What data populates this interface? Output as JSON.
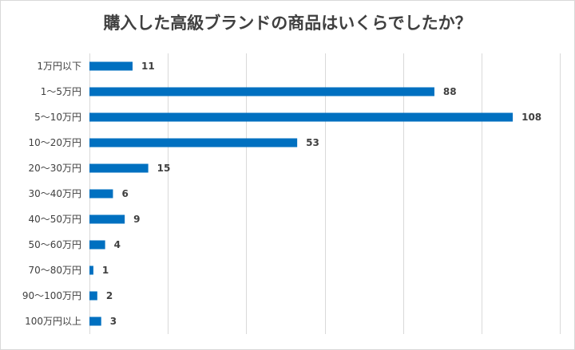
{
  "chart_data": {
    "type": "bar",
    "orientation": "horizontal",
    "title": "購入した高級ブランドの商品はいくらでしたか？",
    "categories": [
      "1万円以下",
      "1～5万円",
      "5～10万円",
      "10～20万円",
      "20～30万円",
      "30～40万円",
      "40～50万円",
      "50～60万円",
      "70～80万円",
      "90～100万円",
      "100万円以上"
    ],
    "values": [
      11,
      88,
      108,
      53,
      15,
      6,
      9,
      4,
      1,
      2,
      3
    ],
    "xlim": [
      0,
      120
    ],
    "grid": true,
    "bar_color": "#0070c0",
    "data_labels": true
  }
}
